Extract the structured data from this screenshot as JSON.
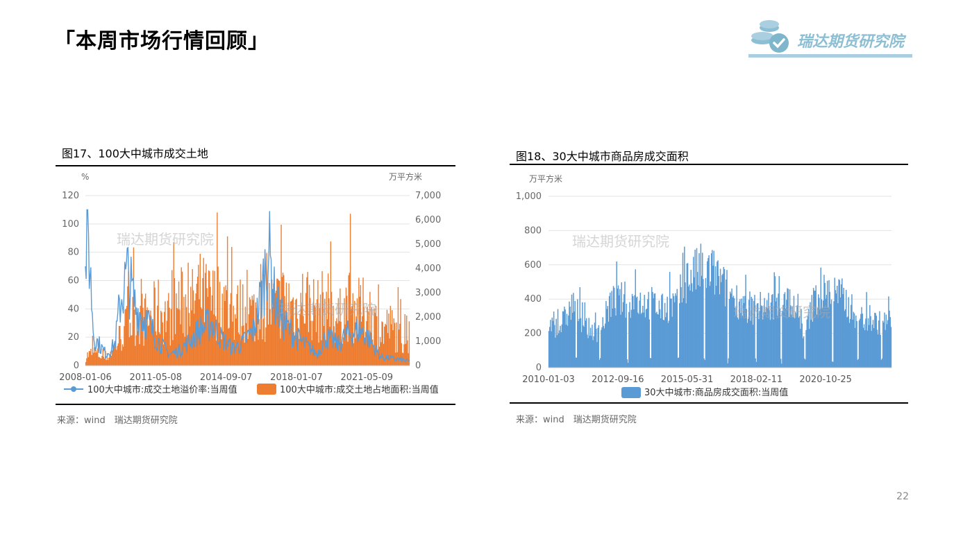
{
  "page": {
    "title": "「本周市场行情回顾」",
    "logo_text": "瑞达期货研究院",
    "page_number": "22"
  },
  "watermark": "瑞达期货研究院",
  "colors": {
    "blue": "#5b9bd5",
    "orange": "#ed7d31",
    "logo": "#8dbfd4"
  },
  "charts": [
    {
      "fig_title": "图17、100大中城市成交土地",
      "source": "来源：wind　瑞达期货研究院"
    },
    {
      "fig_title": "图18、30大中城市商品房成交面积",
      "source": "来源：wind　瑞达期货研究院"
    }
  ],
  "chart_data": [
    {
      "type": "line+bar",
      "yunit_left": "%",
      "yunit_right": "万平方米",
      "x_ticks": [
        "2008-01-06",
        "2011-05-08",
        "2014-09-07",
        "2018-01-07",
        "2021-05-09"
      ],
      "y_left_ticks": [
        "0",
        "20",
        "40",
        "60",
        "80",
        "100",
        "120"
      ],
      "y_right_ticks": [
        "0",
        "1,000",
        "2,000",
        "3,000",
        "4,000",
        "5,000",
        "6,000",
        "7,000"
      ],
      "ylim_left": [
        0,
        120
      ],
      "ylim_right": [
        0,
        7000
      ],
      "x_range": [
        "2008-01-06",
        "2023-05-21"
      ],
      "series": [
        {
          "name": "100大中城市:成交土地溢价率:当周值",
          "axis": "left",
          "type": "line",
          "x": [
            "2008-01",
            "2008-02",
            "2008-06",
            "2009-01",
            "2009-06",
            "2009-09",
            "2010-01",
            "2010-06",
            "2011-01",
            "2011-06",
            "2012-01",
            "2012-06",
            "2013-01",
            "2013-06",
            "2014-01",
            "2014-06",
            "2015-01",
            "2015-06",
            "2016-01",
            "2016-06",
            "2016-09",
            "2017-01",
            "2017-06",
            "2018-01",
            "2018-06",
            "2019-01",
            "2019-06",
            "2020-01",
            "2020-06",
            "2021-01",
            "2021-06",
            "2022-01",
            "2022-06",
            "2023-01",
            "2023-05"
          ],
          "values": [
            52,
            108,
            20,
            8,
            15,
            45,
            65,
            40,
            30,
            18,
            8,
            10,
            18,
            25,
            30,
            20,
            12,
            15,
            25,
            55,
            85,
            45,
            30,
            20,
            15,
            8,
            20,
            15,
            22,
            25,
            20,
            6,
            5,
            4,
            3
          ]
        },
        {
          "name": "100大中城市:成交土地占地面积:当周值",
          "axis": "right",
          "type": "bar",
          "x": [
            "2008-01",
            "2008-06",
            "2009-01",
            "2009-06",
            "2010-01",
            "2010-06",
            "2011-01",
            "2011-06",
            "2012-01",
            "2012-06",
            "2013-01",
            "2013-06",
            "2014-01",
            "2014-06",
            "2015-01",
            "2015-06",
            "2016-01",
            "2016-06",
            "2017-01",
            "2017-06",
            "2018-01",
            "2018-06",
            "2019-01",
            "2019-06",
            "2020-01",
            "2020-06",
            "2021-01",
            "2021-06",
            "2022-01",
            "2022-06",
            "2023-01",
            "2023-05"
          ],
          "values": [
            400,
            600,
            300,
            900,
            1800,
            2200,
            2000,
            2500,
            2100,
            2800,
            2600,
            3200,
            2800,
            3000,
            2200,
            2500,
            2300,
            2700,
            2600,
            2900,
            2500,
            3000,
            2400,
            2800,
            2000,
            2700,
            2400,
            2500,
            1500,
            1800,
            1200,
            1000
          ]
        }
      ]
    },
    {
      "type": "bar",
      "yunit": "万平方米",
      "x_ticks": [
        "2010-01-03",
        "2012-09-16",
        "2015-05-31",
        "2018-02-11",
        "2020-10-25"
      ],
      "y_ticks": [
        "0",
        "200",
        "400",
        "600",
        "800",
        "1,000"
      ],
      "ylim": [
        0,
        1000
      ],
      "x_range": [
        "2010-01-03",
        "2023-05-21"
      ],
      "series": [
        {
          "name": "30大中城市:商品房成交面积:当周值",
          "x": [
            "2010-01",
            "2010-06",
            "2011-01",
            "2011-06",
            "2012-01",
            "2012-06",
            "2013-01",
            "2013-06",
            "2014-01",
            "2014-06",
            "2015-01",
            "2015-06",
            "2016-01",
            "2016-06",
            "2017-01",
            "2017-06",
            "2018-01",
            "2018-06",
            "2019-01",
            "2019-06",
            "2020-01",
            "2020-06",
            "2021-01",
            "2021-06",
            "2022-01",
            "2022-06",
            "2023-01",
            "2023-05"
          ],
          "values": [
            260,
            230,
            380,
            240,
            200,
            380,
            400,
            390,
            380,
            340,
            380,
            520,
            580,
            560,
            450,
            390,
            340,
            360,
            360,
            400,
            200,
            420,
            450,
            420,
            310,
            280,
            260,
            270
          ]
        }
      ]
    }
  ]
}
